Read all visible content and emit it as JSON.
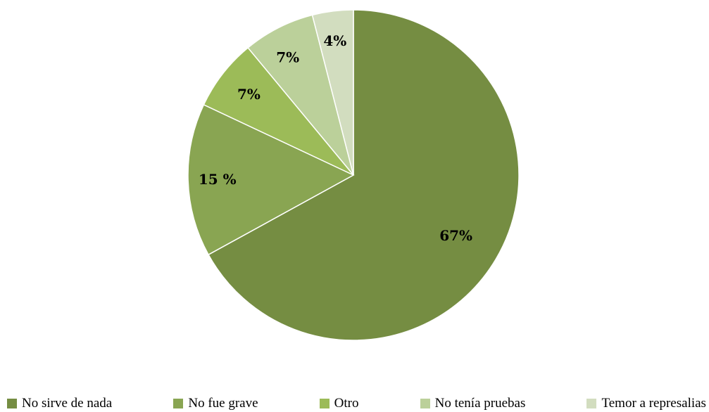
{
  "chart_data": {
    "type": "pie",
    "title": "",
    "start_angle_deg": 0,
    "direction": "clockwise",
    "legend_position": "bottom",
    "slices": [
      {
        "label": "No sirve de nada",
        "value": 67,
        "display": "67%",
        "color": "#758D42"
      },
      {
        "label": "No fue grave",
        "value": 15,
        "display": "15 %",
        "color": "#89A552"
      },
      {
        "label": "Otro",
        "value": 7,
        "display": "7%",
        "color": "#9CBB58"
      },
      {
        "label": "No tenía pruebas",
        "value": 7,
        "display": "7%",
        "color": "#BBD09A"
      },
      {
        "label": "Temor a represalias",
        "value": 4,
        "display": "4%",
        "color": "#D2DDBF"
      }
    ]
  }
}
